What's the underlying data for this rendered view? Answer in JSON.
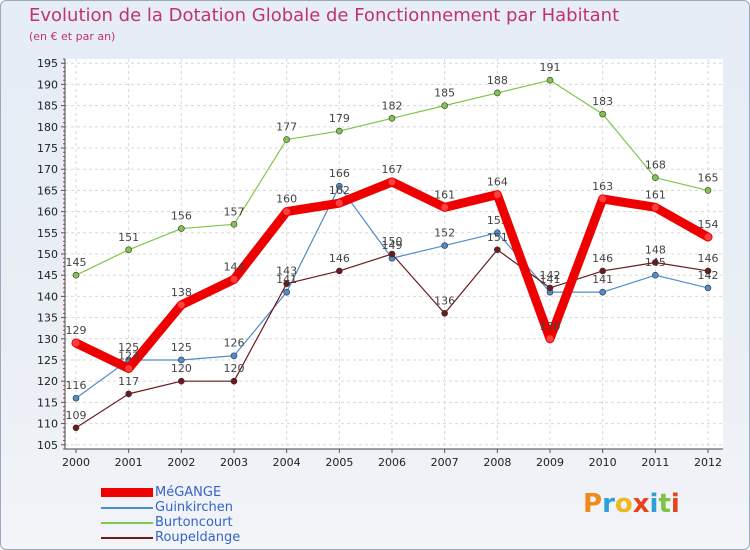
{
  "title": "Evolution de la Dotation Globale de Fonctionnement par Habitant",
  "subtitle": "(en € et par an)",
  "chart_data": {
    "type": "line",
    "title": "Evolution de la Dotation Globale de Fonctionnement par Habitant",
    "subtitle": "(en € et par an)",
    "xlabel": "",
    "ylabel": "",
    "ylim": [
      104,
      196
    ],
    "y_ticks": [
      105,
      110,
      115,
      120,
      125,
      130,
      135,
      140,
      145,
      150,
      155,
      160,
      165,
      170,
      175,
      180,
      185,
      190,
      195
    ],
    "grid": true,
    "legend_position": "bottom-left",
    "categories": [
      "2000",
      "2001",
      "2002",
      "2003",
      "2004",
      "2005",
      "2006",
      "2007",
      "2008",
      "2009",
      "2010",
      "2011",
      "2012"
    ],
    "series": [
      {
        "name": "Burtoncourt",
        "color": "#7fc64a",
        "values": [
          145,
          151,
          156,
          157,
          177,
          179,
          182,
          185,
          188,
          191,
          183,
          168,
          165
        ]
      },
      {
        "name": "Guinkirchen",
        "color": "#4f8ccb",
        "values": [
          116,
          125,
          125,
          126,
          141,
          166,
          149,
          152,
          155,
          141,
          141,
          145,
          142
        ]
      },
      {
        "name": "Roupeldange",
        "color": "#6b1a1e",
        "values": [
          109,
          117,
          120,
          120,
          143,
          146,
          150,
          136,
          151,
          142,
          146,
          148,
          146
        ]
      },
      {
        "name": "MéGANGE",
        "color": "#ee0000",
        "values": [
          129,
          123,
          138,
          144,
          160,
          162,
          167,
          161,
          164,
          130,
          163,
          161,
          154
        ]
      }
    ]
  },
  "legend": [
    {
      "name": "MéGANGE",
      "color": "#ee0000"
    },
    {
      "name": "Guinkirchen",
      "color": "#4f8ccb"
    },
    {
      "name": "Burtoncourt",
      "color": "#7fc64a"
    },
    {
      "name": "Roupeldange",
      "color": "#6b1a1e"
    }
  ],
  "logo": {
    "letters": [
      "P",
      "r",
      "o",
      "x",
      "i",
      "t",
      "i"
    ],
    "colors": [
      "#f08a1c",
      "#2f9fd8",
      "#f0b81c",
      "#e8441c",
      "#2f9fd8",
      "#7cc443",
      "#e8441c"
    ]
  }
}
